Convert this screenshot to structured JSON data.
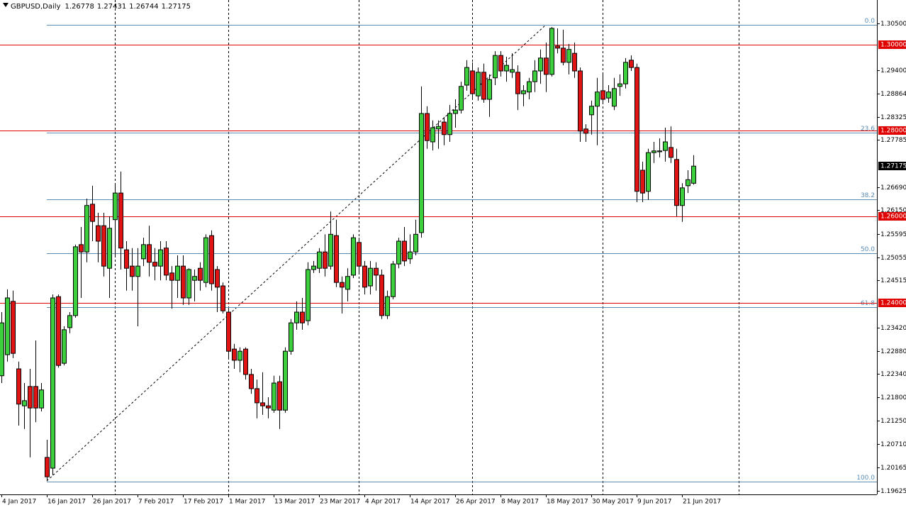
{
  "chart_data": {
    "type": "candlestick",
    "title": "GBPUSD,Daily",
    "last_ohlc": [
      1.26778,
      1.27431,
      1.26744,
      1.27175
    ],
    "current_price": 1.27175,
    "categories": [
      "4 Jan 2017",
      null,
      null,
      null,
      null,
      null,
      null,
      null,
      "16 Jan 2017",
      null,
      null,
      null,
      null,
      null,
      null,
      null,
      "26 Jan 2017",
      null,
      null,
      null,
      null,
      null,
      null,
      null,
      "7 Feb 2017",
      null,
      null,
      null,
      null,
      null,
      null,
      null,
      "17 Feb 2017",
      null,
      null,
      null,
      null,
      null,
      null,
      null,
      "1 Mar 2017",
      null,
      null,
      null,
      null,
      null,
      null,
      null,
      "13 Mar 2017",
      null,
      null,
      null,
      null,
      null,
      null,
      null,
      "23 Mar 2017",
      null,
      null,
      null,
      null,
      null,
      null,
      null,
      "4 Apr 2017",
      null,
      null,
      null,
      null,
      null,
      null,
      null,
      "14 Apr 2017",
      null,
      null,
      null,
      null,
      null,
      null,
      null,
      "26 Apr 2017",
      null,
      null,
      null,
      null,
      null,
      null,
      null,
      "8 May 2017",
      null,
      null,
      null,
      null,
      null,
      null,
      null,
      "18 May 2017",
      null,
      null,
      null,
      null,
      null,
      null,
      null,
      "30 May 2017",
      null,
      null,
      null,
      null,
      null,
      null,
      null,
      "9 Jun 2017",
      null,
      null,
      null,
      null,
      null,
      null,
      null,
      "21 Jun 2017",
      null,
      null
    ],
    "open": [
      1.223,
      1.2279,
      1.2403,
      1.2246,
      1.216,
      1.2205,
      1.2205,
      1.2155,
      1.204,
      1.2015,
      1.2414,
      1.2259,
      1.2342,
      1.237,
      1.2535,
      1.2518,
      1.2629,
      1.2579,
      1.2579,
      1.248,
      1.2593,
      1.2655,
      1.2523,
      1.2485,
      1.2461,
      1.2502,
      1.2535,
      1.2494,
      1.2485,
      1.2527,
      1.2469,
      1.2452,
      1.2485,
      1.2411,
      1.2452,
      1.248,
      1.2447,
      1.2556,
      1.2477,
      1.2439,
      1.2378,
      1.2292,
      1.2266,
      1.2292,
      1.2233,
      1.22,
      1.2167,
      1.216,
      1.215,
      1.2216,
      1.215,
      1.2287,
      1.2353,
      1.2378,
      1.2358,
      1.2477,
      1.248,
      1.2518,
      1.2485,
      1.2556,
      1.2447,
      1.2431,
      1.2464,
      1.254,
      1.2485,
      1.2439,
      1.248,
      1.2464,
      1.237,
      1.2414,
      1.249,
      1.2543,
      1.2502,
      1.2518,
      1.2563,
      1.284,
      1.2774,
      1.2804,
      1.282,
      1.2791,
      1.284,
      1.2848,
      1.2906,
      1.2939,
      1.2881,
      1.2936,
      1.2873,
      1.2923,
      1.2975,
      1.2939,
      1.2936,
      1.2936,
      1.2886,
      1.289,
      1.2914,
      1.2939,
      1.2969,
      1.2931,
      1.2997,
      1.2992,
      1.2959,
      1.298,
      1.2939,
      1.2804,
      1.2837,
      1.2857,
      1.2893,
      1.2876,
      1.2857,
      1.2903,
      1.2909,
      1.2964,
      1.2947,
      1.2708,
      1.2659,
      1.2749,
      1.2751,
      1.2754,
      1.2761,
      1.2733,
      1.2626,
      1.2672,
      1.26778
    ],
    "high": [
      1.2378,
      1.2431,
      1.2428,
      1.2263,
      1.2213,
      1.2246,
      1.2312,
      1.2213,
      1.2081,
      1.2419,
      1.2419,
      1.2345,
      1.2378,
      1.2535,
      1.2576,
      1.2642,
      1.2672,
      1.2609,
      1.2609,
      1.2601,
      1.2675,
      1.2705,
      1.2543,
      1.2527,
      1.2527,
      1.2551,
      1.2579,
      1.2527,
      1.2543,
      1.2543,
      1.2485,
      1.251,
      1.251,
      1.248,
      1.2477,
      1.2494,
      1.2559,
      1.2568,
      1.2485,
      1.2447,
      1.2386,
      1.2304,
      1.2296,
      1.2296,
      1.2246,
      1.2221,
      1.2238,
      1.218,
      1.223,
      1.223,
      1.2296,
      1.2362,
      1.2403,
      1.2411,
      1.2494,
      1.2497,
      1.2527,
      1.2559,
      1.2612,
      1.2593,
      1.2461,
      1.248,
      1.2559,
      1.2551,
      1.2497,
      1.2497,
      1.2494,
      1.2477,
      1.2428,
      1.2497,
      1.2551,
      1.2576,
      1.2559,
      1.2593,
      1.2903,
      1.2857,
      1.2824,
      1.2824,
      1.2832,
      1.286,
      1.2873,
      1.2914,
      1.2964,
      1.2959,
      1.2947,
      1.2956,
      1.2931,
      1.2985,
      1.2985,
      1.2972,
      1.298,
      1.2952,
      1.2906,
      1.2923,
      1.2964,
      1.2989,
      1.3005,
      1.3041,
      1.3038,
      1.3035,
      1.3002,
      1.3005,
      1.2947,
      1.2815,
      1.287,
      1.2923,
      1.2931,
      1.2906,
      1.2923,
      1.2931,
      1.2969,
      1.2975,
      1.2956,
      1.2728,
      1.2758,
      1.2774,
      1.2782,
      1.2807,
      1.281,
      1.2758,
      1.2678,
      1.2708,
      1.27431
    ],
    "low": [
      1.2213,
      1.2263,
      1.2271,
      1.2114,
      1.2106,
      1.204,
      1.2122,
      1.2147,
      1.1985,
      1.1999,
      1.2249,
      1.2254,
      1.2329,
      1.2365,
      1.2411,
      1.2494,
      1.2543,
      1.2494,
      1.2461,
      1.2411,
      1.251,
      1.2477,
      1.2428,
      1.2428,
      1.2345,
      1.2485,
      1.2461,
      1.2452,
      1.2452,
      1.2452,
      1.2386,
      1.2411,
      1.2395,
      1.2395,
      1.2403,
      1.2428,
      1.2436,
      1.2428,
      1.2378,
      1.2375,
      1.2271,
      1.2246,
      1.2238,
      1.2221,
      1.2188,
      1.2131,
      1.2139,
      1.2131,
      1.2144,
      1.2106,
      1.2144,
      1.2279,
      1.2337,
      1.2337,
      1.2347,
      1.2469,
      1.2469,
      1.2461,
      1.2477,
      1.2436,
      1.2375,
      1.2403,
      1.2457,
      1.2469,
      1.2419,
      1.2419,
      1.2428,
      1.2362,
      1.2362,
      1.2408,
      1.248,
      1.2485,
      1.249,
      1.251,
      1.2551,
      1.2758,
      1.2754,
      1.2758,
      1.2766,
      1.2774,
      1.2807,
      1.284,
      1.2893,
      1.2873,
      1.287,
      1.2865,
      1.2832,
      1.2906,
      1.2926,
      1.2914,
      1.2923,
      1.2848,
      1.2857,
      1.2873,
      1.289,
      1.2909,
      1.289,
      1.2926,
      1.298,
      1.2952,
      1.2931,
      1.2923,
      1.2774,
      1.2774,
      1.2791,
      1.2766,
      1.2865,
      1.2865,
      1.2848,
      1.2881,
      1.2898,
      1.2939,
      1.2634,
      1.2634,
      1.2639,
      1.2725,
      1.2738,
      1.2728,
      1.2725,
      1.2601,
      1.2588,
      1.2655,
      1.26744
    ],
    "close": [
      1.2353,
      1.2411,
      1.2282,
      1.2164,
      1.2172,
      1.2155,
      1.2155,
      1.2197,
      1.1995,
      1.2411,
      1.2254,
      1.2337,
      1.237,
      1.253,
      1.2518,
      1.2626,
      1.2589,
      1.2543,
      1.2485,
      1.2573,
      1.2655,
      1.2527,
      1.248,
      1.2461,
      1.2485,
      1.2535,
      1.2494,
      1.2485,
      1.2523,
      1.2464,
      1.2452,
      1.2485,
      1.2411,
      1.2477,
      1.2461,
      1.2452,
      1.2551,
      1.2444,
      1.2436,
      1.2381,
      1.2287,
      1.2266,
      1.2287,
      1.2233,
      1.22,
      1.2167,
      1.216,
      1.2155,
      1.2213,
      1.215,
      1.2287,
      1.2353,
      1.2378,
      1.2353,
      1.2477,
      1.2485,
      1.2518,
      1.248,
      1.2559,
      1.2447,
      1.2436,
      1.2461,
      1.2551,
      1.2485,
      1.2436,
      1.248,
      1.2464,
      1.237,
      1.2414,
      1.249,
      1.2543,
      1.2497,
      1.2518,
      1.2559,
      1.284,
      1.2777,
      1.2807,
      1.281,
      1.2791,
      1.284,
      1.2848,
      1.2903,
      1.2947,
      1.2886,
      1.2936,
      1.2873,
      1.2919,
      1.2975,
      1.2939,
      1.2952,
      1.2942,
      1.2886,
      1.2893,
      1.2914,
      1.2939,
      1.2969,
      1.2931,
      1.3038,
      1.2992,
      1.2959,
      1.2989,
      1.2939,
      1.2799,
      1.2794,
      1.2857,
      1.289,
      1.2873,
      1.289,
      1.2898,
      1.2909,
      1.2959,
      1.2947,
      1.2659,
      1.2655,
      1.2749,
      1.2753,
      1.2753,
      1.2774,
      1.2738,
      1.2626,
      1.2667,
      1.2686,
      1.27175
    ],
    "up_color": "#3ccf3c",
    "down_color": "#e01414",
    "wick_color": "#000000",
    "ylim": [
      1.1954,
      1.3104
    ],
    "yticks": [
      {
        "value": 1.305,
        "label": "1.30500"
      },
      {
        "value": 1.294,
        "label": "1.29400"
      },
      {
        "value": 1.28864,
        "label": "1.28864"
      },
      {
        "value": 1.28325,
        "label": "1.28325"
      },
      {
        "value": 1.27785,
        "label": "1.27785"
      },
      {
        "value": 1.2669,
        "label": "1.26690"
      },
      {
        "value": 1.2615,
        "label": "1.26150"
      },
      {
        "value": 1.25595,
        "label": "1.25595"
      },
      {
        "value": 1.25055,
        "label": "1.25055"
      },
      {
        "value": 1.24515,
        "label": "1.24515"
      },
      {
        "value": 1.2342,
        "label": "1.23420"
      },
      {
        "value": 1.2288,
        "label": "1.22880"
      },
      {
        "value": 1.2234,
        "label": "1.22340"
      },
      {
        "value": 1.218,
        "label": "1.21800"
      },
      {
        "value": 1.2125,
        "label": "1.21250"
      },
      {
        "value": 1.2071,
        "label": "1.20710"
      },
      {
        "value": 1.20165,
        "label": "1.20165"
      },
      {
        "value": 1.19625,
        "label": "1.19625"
      }
    ],
    "levels": [
      {
        "value": 1.3,
        "label": "1.30000"
      },
      {
        "value": 1.28,
        "label": "1.28000"
      },
      {
        "value": 1.26,
        "label": "1.26000"
      },
      {
        "value": 1.24,
        "label": "1.24000"
      }
    ],
    "level_color": "#e00000",
    "fib_levels": [
      {
        "value": 1.3046,
        "label": "0.0"
      },
      {
        "value": 1.2795,
        "label": "23.6"
      },
      {
        "value": 1.264,
        "label": "38.2"
      },
      {
        "value": 1.2515,
        "label": "50.0"
      },
      {
        "value": 1.239,
        "label": "61.8"
      },
      {
        "value": 1.1984,
        "label": "100.0"
      }
    ],
    "fib_color": "#5a8cb4",
    "grid": false
  }
}
